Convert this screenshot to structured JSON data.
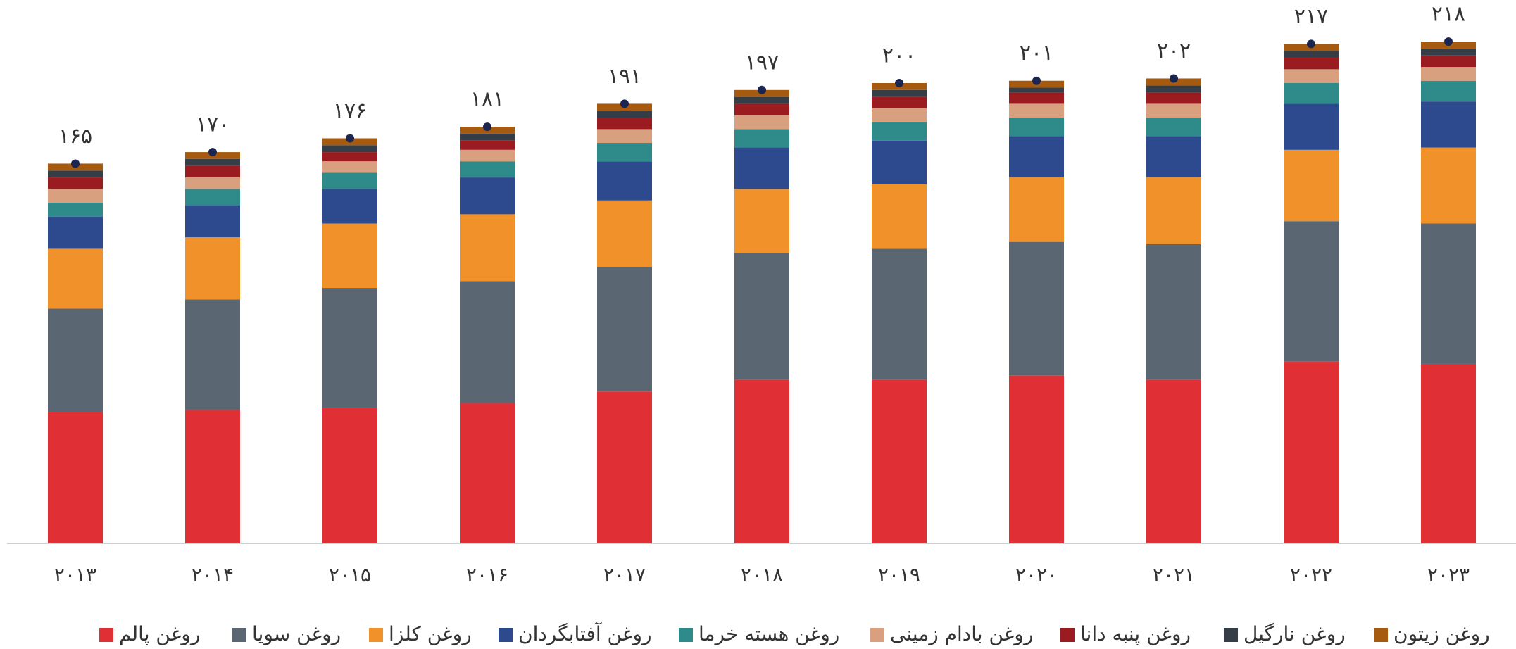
{
  "chart_data": {
    "type": "stacked-bar",
    "categories": [
      "۲۰۱۳",
      "۲۰۱۴",
      "۲۰۱۵",
      "۲۰۱۶",
      "۲۰۱۷",
      "۲۰۱۸",
      "۲۰۱۹",
      "۲۰۲۰",
      "۲۰۲۱",
      "۲۰۲۲",
      "۲۰۲۳"
    ],
    "series": [
      {
        "name": "روغن پالم",
        "color": "#e03035",
        "values": [
          57,
          58,
          59,
          61,
          66,
          71,
          71,
          73,
          71,
          79,
          78
        ]
      },
      {
        "name": "روغن سویا",
        "color": "#5a6773",
        "values": [
          45,
          48,
          52,
          53,
          54,
          55,
          57,
          58,
          59,
          61,
          61
        ]
      },
      {
        "name": "روغن کلزا",
        "color": "#f0912a",
        "values": [
          26,
          27,
          28,
          29,
          29,
          28,
          28,
          28,
          29,
          31,
          33
        ]
      },
      {
        "name": "روغن آفتابگردان",
        "color": "#2e4a8e",
        "values": [
          14,
          14,
          15,
          16,
          17,
          18,
          19,
          18,
          18,
          20,
          20
        ]
      },
      {
        "name": "روغن هسته خرما",
        "color": "#2f8a8a",
        "values": [
          6,
          7,
          7,
          7,
          8,
          8,
          8,
          8,
          8,
          9,
          9
        ]
      },
      {
        "name": "روغن بادام زمینی",
        "color": "#d9a080",
        "values": [
          6,
          5,
          5,
          5,
          6,
          6,
          6,
          6,
          6,
          6,
          6
        ]
      },
      {
        "name": "روغن پنبه دانا",
        "color": "#9a1c20",
        "values": [
          5,
          5,
          4,
          4,
          5,
          5,
          5,
          5,
          5,
          5,
          5
        ]
      },
      {
        "name": "روغن نارگیل",
        "color": "#353d47",
        "values": [
          3,
          3,
          3,
          3,
          3,
          3,
          3,
          2,
          3,
          3,
          3
        ]
      },
      {
        "name": "روغن زیتون",
        "color": "#a65a10",
        "values": [
          3,
          3,
          3,
          3,
          3,
          3,
          3,
          3,
          3,
          3,
          3
        ]
      }
    ],
    "totals": [
      165,
      170,
      176,
      181,
      191,
      197,
      200,
      201,
      202,
      217,
      218
    ],
    "total_labels": [
      "۱۶۵",
      "۱۷۰",
      "۱۷۶",
      "۱۸۱",
      "۱۹۱",
      "۱۹۷",
      "۲۰۰",
      "۲۰۱",
      "۲۰۲",
      "۲۱۷",
      "۲۱۸"
    ],
    "total_marker_color": "#1a2550"
  }
}
